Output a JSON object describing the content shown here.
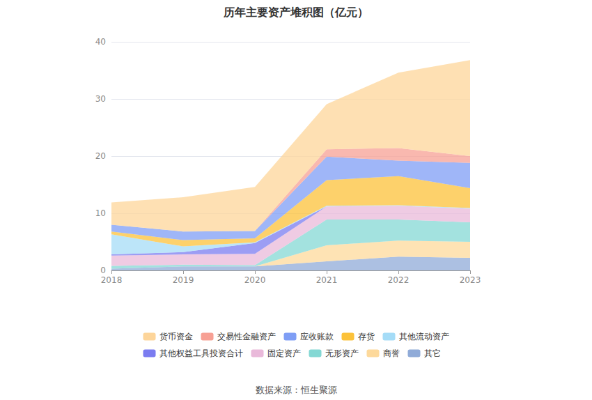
{
  "chart_data": {
    "type": "area",
    "title": "历年主要资产堆积图（亿元）",
    "source": "数据来源：恒生聚源",
    "stacked": true,
    "grid": true,
    "legend": "bottom",
    "categories": [
      "2018",
      "2019",
      "2020",
      "2021",
      "2022",
      "2023"
    ],
    "ylim": [
      0,
      40
    ],
    "yticks": [
      0,
      10,
      20,
      30,
      40
    ],
    "series": [
      {
        "name": "货币资金",
        "color": "#fdd59a",
        "values": [
          3.9,
          6.0,
          7.7,
          7.9,
          13.2,
          16.8
        ]
      },
      {
        "name": "交易性金融资产",
        "color": "#f7a094",
        "values": [
          0,
          0,
          0,
          1.3,
          2.2,
          1.2
        ]
      },
      {
        "name": "应收账款",
        "color": "#7f9ef5",
        "values": [
          1.2,
          1.5,
          1.3,
          4.1,
          2.7,
          4.4
        ]
      },
      {
        "name": "存货",
        "color": "#fcc23a",
        "values": [
          0.5,
          1.1,
          0.7,
          4.5,
          5.1,
          3.5
        ]
      },
      {
        "name": "其他流动资产",
        "color": "#a5dcf7",
        "values": [
          3.5,
          1.0,
          0.1,
          0.1,
          0.1,
          0.1
        ]
      },
      {
        "name": "其他权益工具投资合计",
        "color": "#7b7cf0",
        "values": [
          0.2,
          0.4,
          1.9,
          0,
          0,
          0
        ]
      },
      {
        "name": "固定资产",
        "color": "#e9b9da",
        "values": [
          1.8,
          1.8,
          2.0,
          2.3,
          2.4,
          2.4
        ]
      },
      {
        "name": "无形资产",
        "color": "#84d8d4",
        "values": [
          0.5,
          0.3,
          0.2,
          4.5,
          3.7,
          3.4
        ]
      },
      {
        "name": "商誉",
        "color": "#fdd99b",
        "values": [
          0,
          0,
          0,
          2.8,
          2.8,
          2.8
        ]
      },
      {
        "name": "其它",
        "color": "#90abd8",
        "values": [
          0.3,
          0.7,
          0.7,
          1.6,
          2.4,
          2.2
        ]
      }
    ]
  }
}
